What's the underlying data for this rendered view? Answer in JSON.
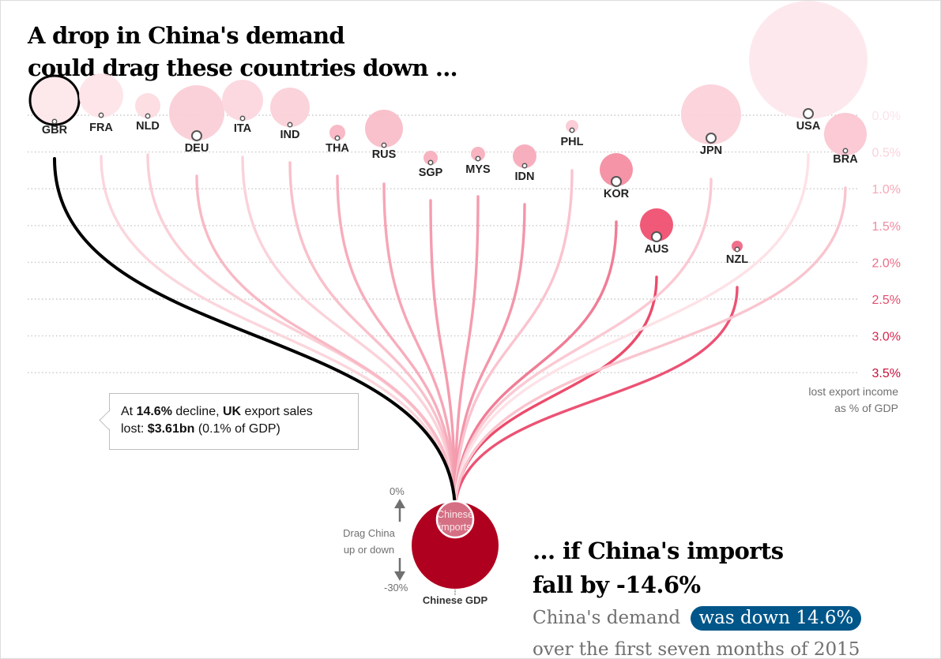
{
  "title_line1": "A drop in China's demand",
  "title_line2": "could drag these countries down ...",
  "headline_line1": "... if China's imports",
  "headline_line2": "fall by -14.6%",
  "sub_before": "China's demand",
  "sub_pill": "was down 14.6%",
  "sub_after": "over the first seven months of 2015",
  "tooltip": {
    "prefix": "At ",
    "pct": "14.6%",
    "mid": " decline, ",
    "subject": "UK",
    "suffix": " export sales",
    "line2_prefix": "lost: ",
    "amount": "$3.61bn",
    "line2_suffix": " (0.1% of GDP)"
  },
  "drag": {
    "top": "0%",
    "bottom": "-30%",
    "line1": "Drag China",
    "line2": "up or down"
  },
  "china_imports_label_line1": "Chinese",
  "china_imports_label_line2": "imports",
  "china_gdp_label": "Chinese GDP",
  "colors": {
    "dark_red": "#b0001f",
    "light_pink": "#fcdde2",
    "mid_pink": "#f7a5b5",
    "hot_pink": "#ef4b6b",
    "selected": "#000000",
    "pill": "#005689"
  },
  "chart_data": {
    "type": "scatter",
    "selected": "GBR",
    "china_import_change": -14.6,
    "y_unit": "lost export income as % of GDP",
    "yaxis": {
      "ticks": [
        "0.0%",
        "0.5%",
        "1.0%",
        "1.5%",
        "2.0%",
        "2.5%",
        "3.0%",
        "3.5%"
      ],
      "label_line1": "lost export income",
      "label_line2": "as % of GDP",
      "range": [
        0,
        3.5
      ],
      "inverted": true
    },
    "countries": [
      {
        "code": "GBR",
        "value": 0.1
      },
      {
        "code": "FRA",
        "value": 0.05
      },
      {
        "code": "NLD",
        "value": 0.05
      },
      {
        "code": "DEU",
        "value": 0.3
      },
      {
        "code": "ITA",
        "value": 0.05
      },
      {
        "code": "IND",
        "value": 0.15
      },
      {
        "code": "THA",
        "value": 0.35
      },
      {
        "code": "RUS",
        "value": 0.45
      },
      {
        "code": "SGP",
        "value": 0.65
      },
      {
        "code": "MYS",
        "value": 0.6
      },
      {
        "code": "IDN",
        "value": 0.7
      },
      {
        "code": "PHL",
        "value": 0.2
      },
      {
        "code": "KOR",
        "value": 0.9
      },
      {
        "code": "AUS",
        "value": 1.7
      },
      {
        "code": "NZL",
        "value": 1.85
      },
      {
        "code": "JPN",
        "value": 0.35
      },
      {
        "code": "USA",
        "value": 0.05
      },
      {
        "code": "BRA",
        "value": 0.5
      }
    ]
  }
}
